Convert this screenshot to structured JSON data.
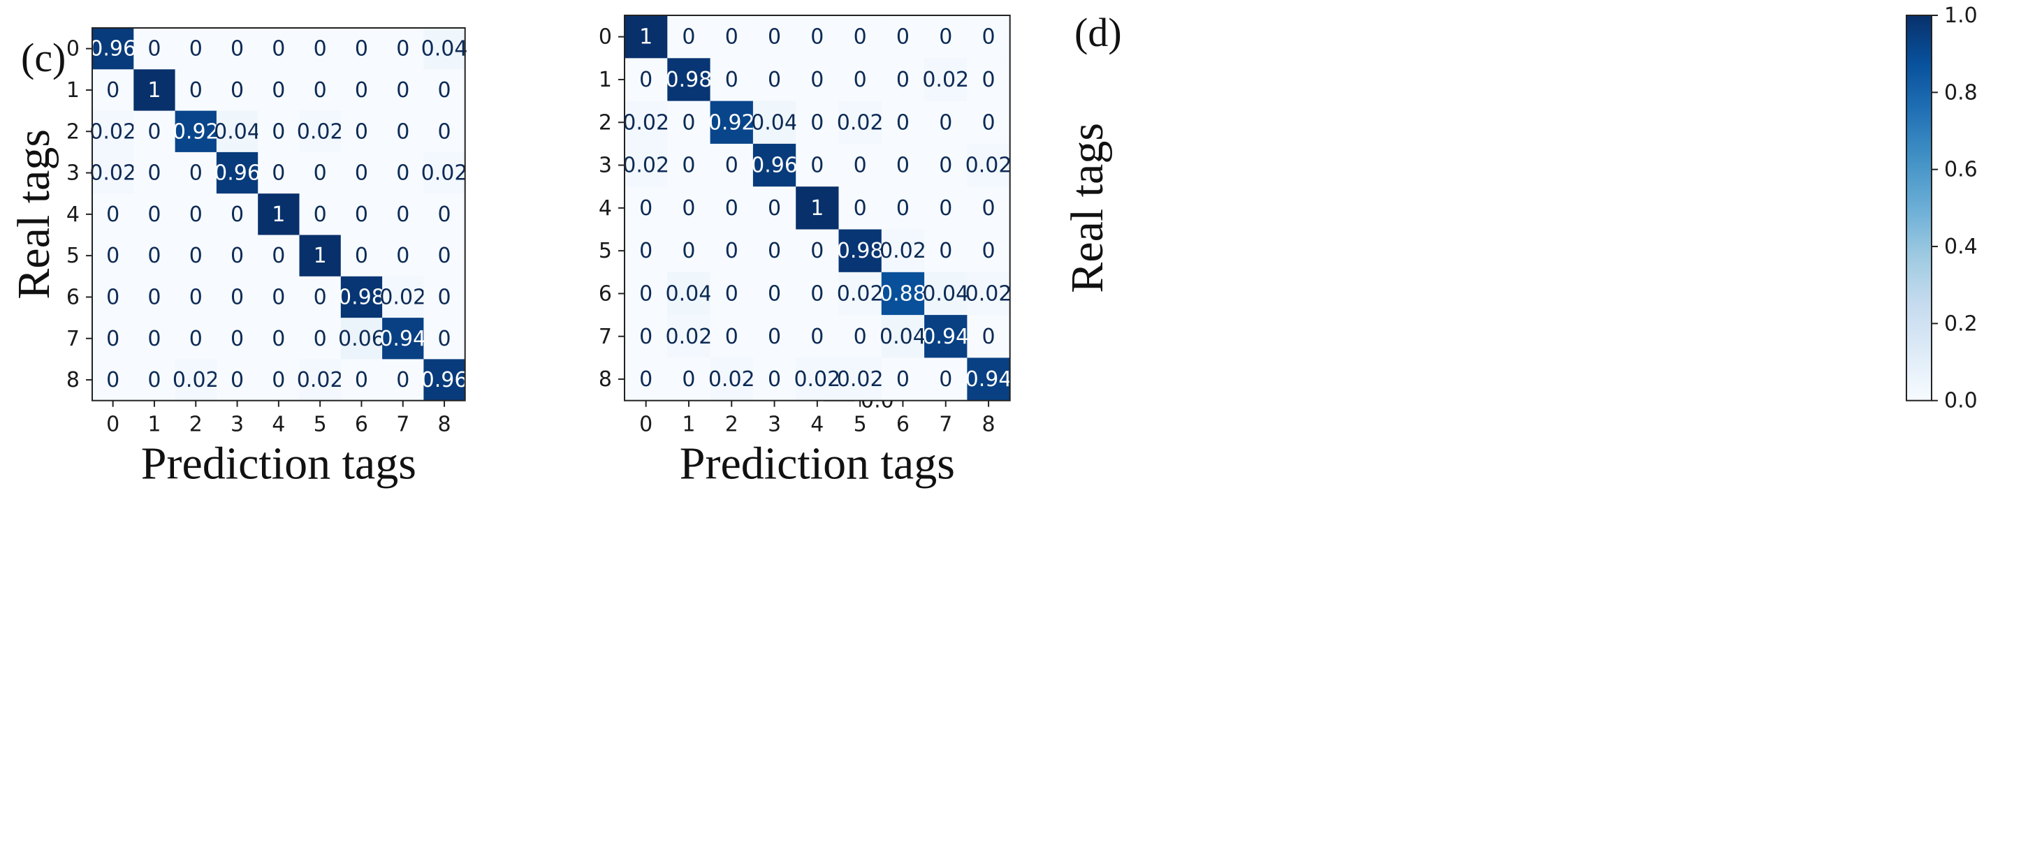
{
  "chart_data": [
    {
      "type": "heatmap",
      "panel_label": "(c)",
      "xlabel": "Prediction tags",
      "ylabel": "Real tags",
      "x_ticks": [
        "0",
        "1",
        "2",
        "3",
        "4",
        "5",
        "6",
        "7",
        "8"
      ],
      "y_ticks": [
        "0",
        "1",
        "2",
        "3",
        "4",
        "5",
        "6",
        "7",
        "8"
      ],
      "colorbar": {
        "min": 0.0,
        "max": 1.0,
        "ticks": [
          "0.0",
          "0.2",
          "0.4",
          "0.6",
          "0.8",
          "1.0"
        ],
        "colormap": "Blues"
      },
      "matrix": [
        [
          0.96,
          0,
          0,
          0,
          0,
          0,
          0,
          0,
          0.04
        ],
        [
          0,
          1,
          0,
          0,
          0,
          0,
          0,
          0,
          0
        ],
        [
          0.02,
          0,
          0.92,
          0.04,
          0,
          0.02,
          0,
          0,
          0
        ],
        [
          0.02,
          0,
          0,
          0.96,
          0,
          0,
          0,
          0,
          0.02
        ],
        [
          0,
          0,
          0,
          0,
          1,
          0,
          0,
          0,
          0
        ],
        [
          0,
          0,
          0,
          0,
          0,
          1,
          0,
          0,
          0
        ],
        [
          0,
          0,
          0,
          0,
          0,
          0,
          0.98,
          0.02,
          0
        ],
        [
          0,
          0,
          0,
          0,
          0,
          0,
          0.06,
          0.94,
          0
        ],
        [
          0,
          0,
          0.02,
          0,
          0,
          0.02,
          0,
          0,
          0.96
        ]
      ],
      "cell_text": [
        [
          "0.96",
          "0",
          "0",
          "0",
          "0",
          "0",
          "0",
          "0",
          "0.04"
        ],
        [
          "0",
          "1",
          "0",
          "0",
          "0",
          "0",
          "0",
          "0",
          "0"
        ],
        [
          "0.02",
          "0",
          "0.92",
          "0.04",
          "0",
          "0.02",
          "0",
          "0",
          "0"
        ],
        [
          "0.02",
          "0",
          "0",
          "0.96",
          "0",
          "0",
          "0",
          "0",
          "0.02"
        ],
        [
          "0",
          "0",
          "0",
          "0",
          "1",
          "0",
          "0",
          "0",
          "0"
        ],
        [
          "0",
          "0",
          "0",
          "0",
          "0",
          "1",
          "0",
          "0",
          "0"
        ],
        [
          "0",
          "0",
          "0",
          "0",
          "0",
          "0",
          "0.98",
          "0.02",
          "0"
        ],
        [
          "0",
          "0",
          "0",
          "0",
          "0",
          "0",
          "0.06",
          "0.94",
          "0"
        ],
        [
          "0",
          "0",
          "0.02",
          "0",
          "0",
          "0.02",
          "0",
          "0",
          "0.96"
        ]
      ]
    },
    {
      "type": "heatmap",
      "panel_label": "(d)",
      "xlabel": "Prediction tags",
      "ylabel": "Real tags",
      "x_ticks": [
        "0",
        "1",
        "2",
        "3",
        "4",
        "5",
        "6",
        "7",
        "8"
      ],
      "y_ticks": [
        "0",
        "1",
        "2",
        "3",
        "4",
        "5",
        "6",
        "7",
        "8"
      ],
      "colorbar": {
        "min": 0.0,
        "max": 1.0,
        "ticks": [
          "0.0",
          "0.2",
          "0.4",
          "0.6",
          "0.8",
          "1.0"
        ],
        "colormap": "Blues"
      },
      "matrix": [
        [
          1,
          0,
          0,
          0,
          0,
          0,
          0,
          0,
          0
        ],
        [
          0,
          0.98,
          0,
          0,
          0,
          0,
          0,
          0.02,
          0
        ],
        [
          0.02,
          0,
          0.92,
          0.04,
          0,
          0.02,
          0,
          0,
          0
        ],
        [
          0.02,
          0,
          0,
          0.96,
          0,
          0,
          0,
          0,
          0.02
        ],
        [
          0,
          0,
          0,
          0,
          1,
          0,
          0,
          0,
          0
        ],
        [
          0,
          0,
          0,
          0,
          0,
          0.98,
          0.02,
          0,
          0
        ],
        [
          0,
          0.04,
          0,
          0,
          0,
          0.02,
          0.88,
          0.04,
          0.02
        ],
        [
          0,
          0.02,
          0,
          0,
          0,
          0,
          0.04,
          0.94,
          0
        ],
        [
          0,
          0,
          0.02,
          0,
          0.02,
          0.02,
          0,
          0,
          0.94
        ]
      ],
      "cell_text": [
        [
          "1",
          "0",
          "0",
          "0",
          "0",
          "0",
          "0",
          "0",
          "0"
        ],
        [
          "0",
          "0.98",
          "0",
          "0",
          "0",
          "0",
          "0",
          "0.02",
          "0"
        ],
        [
          "0.02",
          "0",
          "0.92",
          "0.04",
          "0",
          "0.02",
          "0",
          "0",
          "0"
        ],
        [
          "0.02",
          "0",
          "0",
          "0.96",
          "0",
          "0",
          "0",
          "0",
          "0.02"
        ],
        [
          "0",
          "0",
          "0",
          "0",
          "1",
          "0",
          "0",
          "0",
          "0"
        ],
        [
          "0",
          "0",
          "0",
          "0",
          "0",
          "0.98",
          "0.02",
          "0",
          "0"
        ],
        [
          "0",
          "0.04",
          "0",
          "0",
          "0",
          "0.02",
          "0.88",
          "0.04",
          "0.02"
        ],
        [
          "0",
          "0.02",
          "0",
          "0",
          "0",
          "0",
          "0.04",
          "0.94",
          "0"
        ],
        [
          "0",
          "0",
          "0.02",
          "0",
          "0.02",
          "0.02",
          "0",
          "0",
          "0.94"
        ]
      ]
    }
  ]
}
